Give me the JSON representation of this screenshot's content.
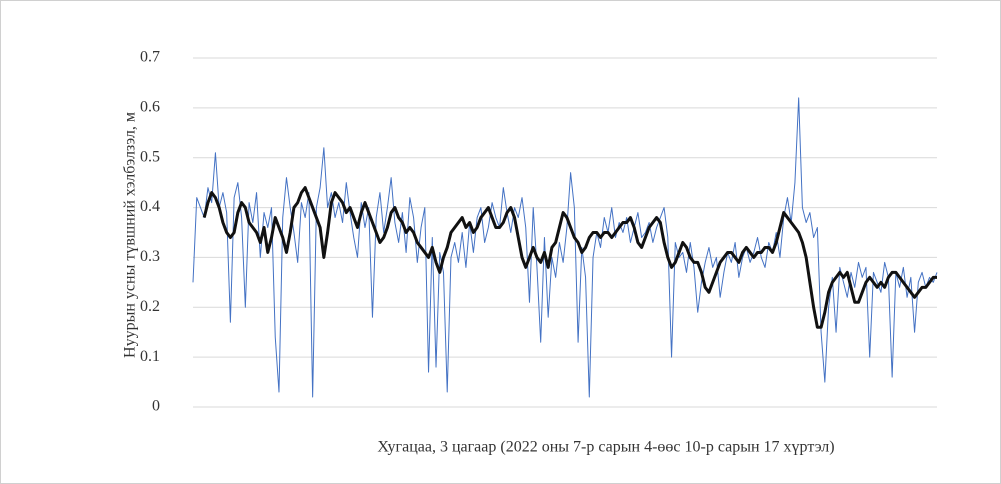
{
  "chart_data": {
    "type": "line",
    "xlabel": "Хугацаа, 3 цагаар (2022 оны 7-р сарын 4-өөс 10-р сарын 17 хүртэл)",
    "ylabel": "Нуурын усны түвшний хэлбэлзэл, м",
    "ylim": [
      0,
      0.7
    ],
    "yticks": [
      0,
      0.1,
      0.2,
      0.3,
      0.4,
      0.5,
      0.6,
      0.7
    ],
    "grid": true,
    "series": [
      {
        "color": "#4472c4",
        "values": [
          0.25,
          0.42,
          0.4,
          0.38,
          0.44,
          0.41,
          0.51,
          0.4,
          0.43,
          0.39,
          0.17,
          0.42,
          0.45,
          0.38,
          0.2,
          0.41,
          0.37,
          0.43,
          0.3,
          0.39,
          0.36,
          0.4,
          0.14,
          0.03,
          0.38,
          0.46,
          0.4,
          0.35,
          0.29,
          0.41,
          0.38,
          0.43,
          0.02,
          0.4,
          0.44,
          0.52,
          0.4,
          0.43,
          0.38,
          0.41,
          0.37,
          0.45,
          0.39,
          0.34,
          0.3,
          0.41,
          0.36,
          0.4,
          0.18,
          0.38,
          0.43,
          0.35,
          0.4,
          0.46,
          0.37,
          0.33,
          0.39,
          0.31,
          0.42,
          0.38,
          0.29,
          0.36,
          0.4,
          0.07,
          0.34,
          0.08,
          0.31,
          0.27,
          0.03,
          0.3,
          0.33,
          0.29,
          0.35,
          0.28,
          0.37,
          0.31,
          0.38,
          0.4,
          0.33,
          0.36,
          0.41,
          0.38,
          0.36,
          0.44,
          0.39,
          0.35,
          0.4,
          0.38,
          0.42,
          0.36,
          0.21,
          0.4,
          0.28,
          0.13,
          0.34,
          0.18,
          0.3,
          0.26,
          0.33,
          0.29,
          0.36,
          0.47,
          0.4,
          0.13,
          0.32,
          0.26,
          0.02,
          0.3,
          0.35,
          0.32,
          0.38,
          0.35,
          0.4,
          0.34,
          0.37,
          0.35,
          0.38,
          0.33,
          0.36,
          0.39,
          0.34,
          0.35,
          0.37,
          0.33,
          0.36,
          0.38,
          0.4,
          0.34,
          0.1,
          0.33,
          0.3,
          0.31,
          0.27,
          0.33,
          0.28,
          0.19,
          0.25,
          0.29,
          0.32,
          0.28,
          0.3,
          0.22,
          0.27,
          0.31,
          0.29,
          0.33,
          0.26,
          0.3,
          0.32,
          0.29,
          0.31,
          0.34,
          0.3,
          0.28,
          0.33,
          0.31,
          0.35,
          0.3,
          0.38,
          0.42,
          0.37,
          0.45,
          0.62,
          0.4,
          0.37,
          0.39,
          0.34,
          0.36,
          0.15,
          0.05,
          0.2,
          0.26,
          0.15,
          0.28,
          0.25,
          0.22,
          0.27,
          0.24,
          0.29,
          0.26,
          0.28,
          0.1,
          0.27,
          0.25,
          0.23,
          0.29,
          0.26,
          0.06,
          0.27,
          0.24,
          0.28,
          0.22,
          0.26,
          0.15,
          0.25,
          0.27,
          0.24,
          0.26,
          0.25,
          0.27
        ]
      },
      {
        "color": "#111111",
        "values": [
          null,
          null,
          null,
          0.38,
          0.41,
          0.43,
          0.42,
          0.4,
          0.37,
          0.35,
          0.34,
          0.35,
          0.39,
          0.41,
          0.4,
          0.37,
          0.36,
          0.35,
          0.33,
          0.36,
          0.31,
          0.34,
          0.38,
          0.36,
          0.34,
          0.31,
          0.35,
          0.4,
          0.41,
          0.43,
          0.44,
          0.42,
          0.4,
          0.38,
          0.36,
          0.3,
          0.35,
          0.41,
          0.43,
          0.42,
          0.41,
          0.39,
          0.4,
          0.38,
          0.36,
          0.39,
          0.41,
          0.39,
          0.37,
          0.35,
          0.33,
          0.34,
          0.36,
          0.39,
          0.4,
          0.38,
          0.37,
          0.35,
          0.36,
          0.35,
          0.33,
          0.32,
          0.31,
          0.3,
          0.32,
          0.29,
          0.27,
          0.3,
          0.32,
          0.35,
          0.36,
          0.37,
          0.38,
          0.36,
          0.37,
          0.35,
          0.36,
          0.38,
          0.39,
          0.4,
          0.38,
          0.36,
          0.36,
          0.37,
          0.39,
          0.4,
          0.38,
          0.34,
          0.3,
          0.28,
          0.3,
          0.32,
          0.3,
          0.29,
          0.31,
          0.28,
          0.32,
          0.33,
          0.36,
          0.39,
          0.38,
          0.36,
          0.34,
          0.33,
          0.31,
          0.32,
          0.34,
          0.35,
          0.35,
          0.34,
          0.35,
          0.35,
          0.34,
          0.35,
          0.36,
          0.37,
          0.37,
          0.38,
          0.36,
          0.33,
          0.32,
          0.34,
          0.36,
          0.37,
          0.38,
          0.37,
          0.33,
          0.3,
          0.28,
          0.29,
          0.31,
          0.33,
          0.32,
          0.3,
          0.29,
          0.29,
          0.27,
          0.24,
          0.23,
          0.25,
          0.27,
          0.29,
          0.3,
          0.31,
          0.31,
          0.3,
          0.29,
          0.31,
          0.32,
          0.31,
          0.3,
          0.31,
          0.31,
          0.32,
          0.32,
          0.31,
          0.33,
          0.36,
          0.39,
          0.38,
          0.37,
          0.36,
          0.35,
          0.33,
          0.3,
          0.25,
          0.2,
          0.16,
          0.16,
          0.19,
          0.23,
          0.25,
          0.26,
          0.27,
          0.26,
          0.27,
          0.24,
          0.21,
          0.21,
          0.23,
          0.25,
          0.26,
          0.25,
          0.24,
          0.25,
          0.24,
          0.26,
          0.27,
          0.27,
          0.26,
          0.25,
          0.24,
          0.23,
          0.22,
          0.23,
          0.24,
          0.24,
          0.25,
          0.26,
          0.26
        ]
      }
    ]
  }
}
